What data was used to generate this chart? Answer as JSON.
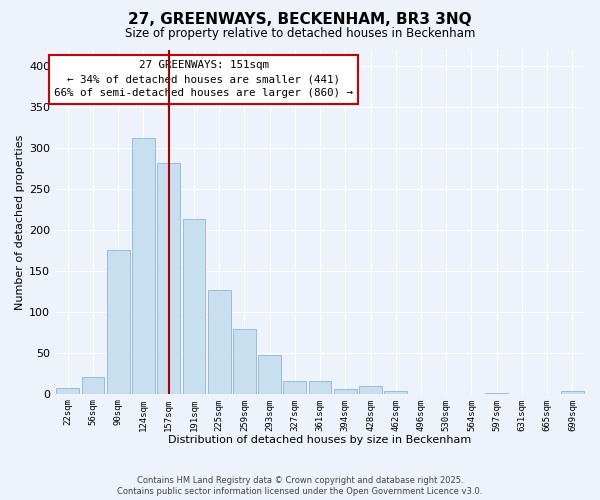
{
  "title": "27, GREENWAYS, BECKENHAM, BR3 3NQ",
  "subtitle": "Size of property relative to detached houses in Beckenham",
  "xlabel": "Distribution of detached houses by size in Beckenham",
  "ylabel": "Number of detached properties",
  "bar_color": "#c8dff0",
  "bar_edge_color": "#8ab8d8",
  "bg_color": "#eef2fb",
  "grid_color": "#ffffff",
  "categories": [
    "22sqm",
    "56sqm",
    "90sqm",
    "124sqm",
    "157sqm",
    "191sqm",
    "225sqm",
    "259sqm",
    "293sqm",
    "327sqm",
    "361sqm",
    "394sqm",
    "428sqm",
    "462sqm",
    "496sqm",
    "530sqm",
    "564sqm",
    "597sqm",
    "631sqm",
    "665sqm",
    "699sqm"
  ],
  "values": [
    7,
    21,
    176,
    312,
    282,
    213,
    127,
    79,
    47,
    15,
    15,
    6,
    9,
    3,
    0,
    0,
    0,
    1,
    0,
    0,
    3
  ],
  "ylim": [
    0,
    420
  ],
  "yticks": [
    0,
    50,
    100,
    150,
    200,
    250,
    300,
    350,
    400
  ],
  "vline_idx": 4,
  "vline_color": "#aa0000",
  "annotation_title": "27 GREENWAYS: 151sqm",
  "annotation_line1": "← 34% of detached houses are smaller (441)",
  "annotation_line2": "66% of semi-detached houses are larger (860) →",
  "annotation_box_color": "#ffffff",
  "annotation_box_edge": "#cc0000",
  "footnote1": "Contains HM Land Registry data © Crown copyright and database right 2025.",
  "footnote2": "Contains public sector information licensed under the Open Government Licence v3.0."
}
